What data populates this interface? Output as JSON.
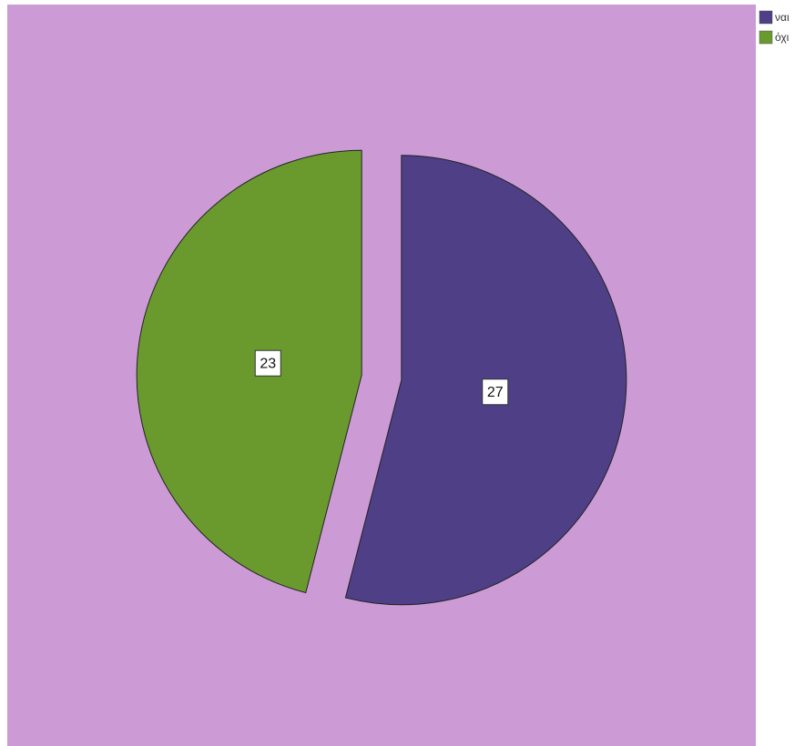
{
  "chart_data": {
    "type": "pie",
    "categories": [
      "ναι",
      "όχι"
    ],
    "values": [
      27,
      23
    ],
    "colors": [
      "#4f3f86",
      "#6a9a2e"
    ],
    "legend": "top-right"
  }
}
